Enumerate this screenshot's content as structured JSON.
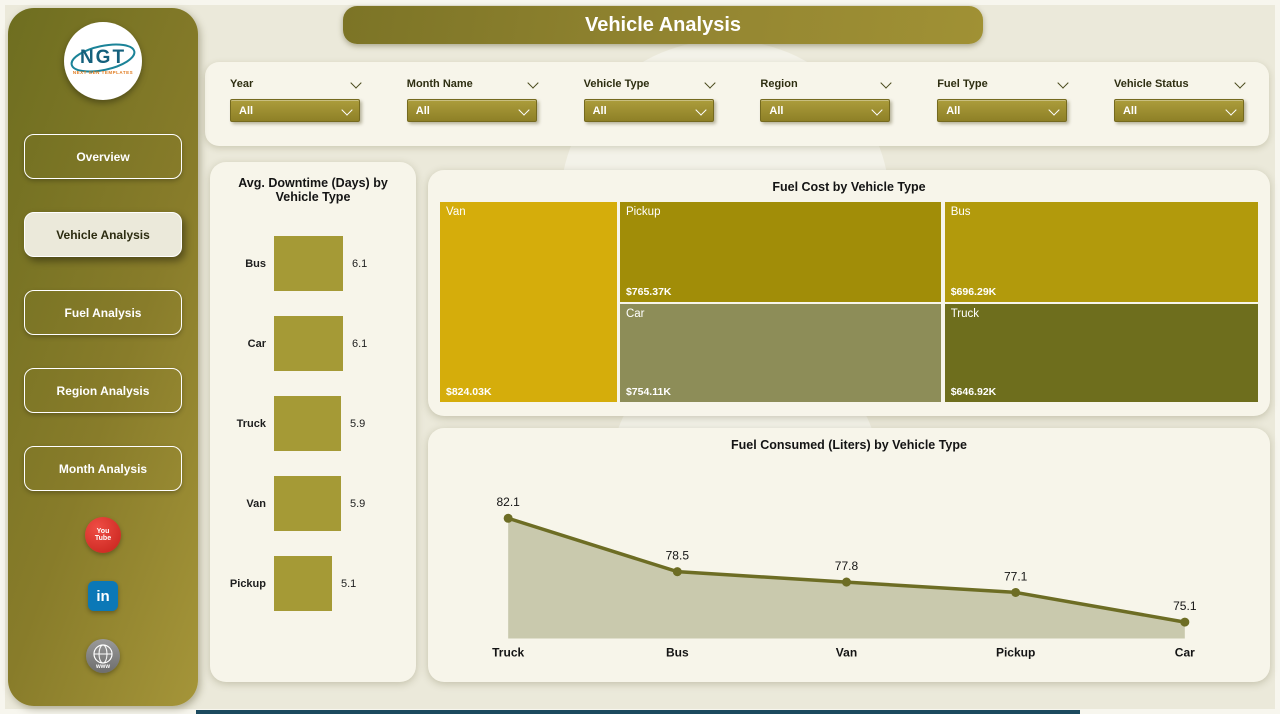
{
  "header": {
    "title": "Vehicle Analysis"
  },
  "sidebar": {
    "logo": {
      "text": "NGT",
      "subtext": "NEXT GEN TEMPLATES"
    },
    "items": [
      {
        "label": "Overview",
        "active": false
      },
      {
        "label": "Vehicle Analysis",
        "active": true
      },
      {
        "label": "Fuel Analysis",
        "active": false
      },
      {
        "label": "Region Analysis",
        "active": false
      },
      {
        "label": "Month Analysis",
        "active": false
      }
    ],
    "social": {
      "youtube": "You Tube",
      "linkedin": "in",
      "website": "www"
    }
  },
  "filters": [
    {
      "label": "Year",
      "value": "All"
    },
    {
      "label": "Month Name",
      "value": "All"
    },
    {
      "label": "Vehicle Type",
      "value": "All"
    },
    {
      "label": "Region",
      "value": "All"
    },
    {
      "label": "Fuel Type",
      "value": "All"
    },
    {
      "label": "Vehicle Status",
      "value": "All"
    }
  ],
  "chart_data": [
    {
      "type": "bar",
      "orientation": "horizontal",
      "title": "Avg. Downtime (Days) by Vehicle Type",
      "categories": [
        "Bus",
        "Car",
        "Truck",
        "Van",
        "Pickup"
      ],
      "values": [
        6.1,
        6.1,
        5.9,
        5.9,
        5.1
      ],
      "xlim": [
        0,
        6.5
      ],
      "bar_color": "#a59a36",
      "grid": false
    },
    {
      "type": "treemap",
      "title": "Fuel Cost by Vehicle Type",
      "items": [
        {
          "label": "Van",
          "value": 824.03,
          "value_label": "$824.03K",
          "color": "#d5ad0b"
        },
        {
          "label": "Pickup",
          "value": 765.37,
          "value_label": "$765.37K",
          "color": "#a18d08"
        },
        {
          "label": "Bus",
          "value": 696.29,
          "value_label": "$696.29K",
          "color": "#b29a0c"
        },
        {
          "label": "Car",
          "value": 754.11,
          "value_label": "$754.11K",
          "color": "#8d8d58"
        },
        {
          "label": "Truck",
          "value": 646.92,
          "value_label": "$646.92K",
          "color": "#6e6e1d"
        }
      ]
    },
    {
      "type": "area",
      "title": "Fuel Consumed (Liters) by Vehicle Type",
      "categories": [
        "Truck",
        "Bus",
        "Van",
        "Pickup",
        "Car"
      ],
      "values": [
        82.1,
        78.5,
        77.8,
        77.1,
        75.1
      ],
      "ylim": [
        74,
        84
      ],
      "line_color": "#6d6d24",
      "fill_color": "#c9c9ad",
      "grid": false,
      "legend": "none"
    }
  ],
  "theme": {
    "accent": "#a2922e",
    "canvas": "#ebe9da",
    "card": "#f7f5ea"
  }
}
